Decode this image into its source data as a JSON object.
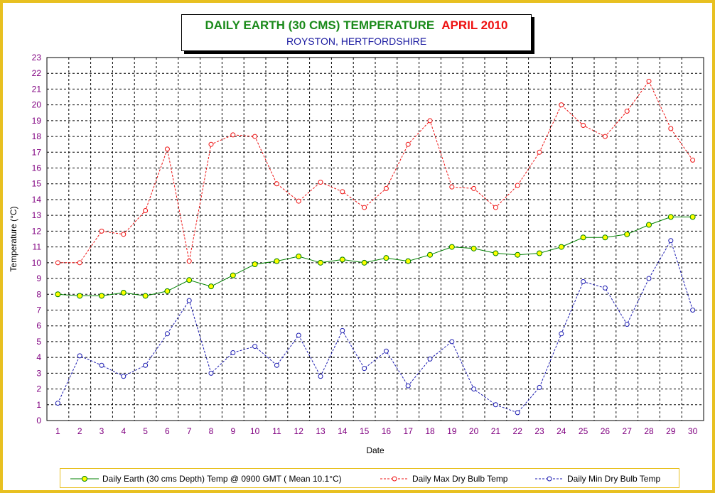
{
  "title": {
    "main": "DAILY EARTH (30 CMS) TEMPERATURE",
    "date": "APRIL 2010",
    "subtitle": "ROYSTON, HERTFORDSHIRE"
  },
  "colors": {
    "frame": "#e8c020",
    "earth": "#008000",
    "earth_marker": "#ffff00",
    "max": "#ee1111",
    "min": "#1a1ab0",
    "tick_label": "#800080"
  },
  "chart_data": {
    "type": "line",
    "title": "DAILY EARTH (30 CMS) TEMPERATURE APRIL 2010",
    "subtitle": "ROYSTON, HERTFORDSHIRE",
    "xlabel": "Date",
    "ylabel": "Temperature (°C)",
    "ylim": [
      0,
      23
    ],
    "grid": true,
    "legend_position": "bottom",
    "x": [
      1,
      2,
      3,
      4,
      5,
      6,
      7,
      8,
      9,
      10,
      11,
      12,
      13,
      14,
      15,
      16,
      17,
      18,
      19,
      20,
      21,
      22,
      23,
      24,
      25,
      26,
      27,
      28,
      29,
      30
    ],
    "y_ticks": [
      0,
      1,
      2,
      3,
      4,
      5,
      6,
      7,
      8,
      9,
      10,
      11,
      12,
      13,
      14,
      15,
      16,
      17,
      18,
      19,
      20,
      21,
      22,
      23
    ],
    "series": [
      {
        "name": "Daily Earth (30 cms Depth) Temp @ 0900 GMT ( Mean 10.1°C)",
        "key": "earth",
        "values": [
          8.0,
          7.9,
          7.9,
          8.1,
          7.9,
          8.2,
          8.9,
          8.5,
          9.2,
          9.9,
          10.1,
          10.4,
          10.0,
          10.2,
          10.0,
          10.3,
          10.1,
          10.5,
          11.0,
          10.9,
          10.6,
          10.5,
          10.6,
          11.0,
          11.6,
          11.6,
          11.8,
          12.4,
          12.9,
          12.9
        ]
      },
      {
        "name": "Daily Max Dry Bulb Temp",
        "key": "max",
        "values": [
          10.0,
          10.0,
          12.0,
          11.8,
          13.3,
          17.2,
          10.1,
          17.5,
          18.1,
          18.0,
          15.0,
          13.9,
          15.1,
          14.5,
          13.5,
          14.7,
          17.5,
          19.0,
          14.8,
          14.7,
          13.5,
          14.9,
          17.0,
          20.0,
          18.7,
          18.0,
          19.6,
          21.5,
          18.5,
          16.5
        ]
      },
      {
        "name": "Daily Min Dry Bulb Temp",
        "key": "min",
        "values": [
          1.1,
          4.1,
          3.5,
          2.8,
          3.5,
          5.5,
          7.6,
          3.0,
          4.3,
          4.7,
          3.5,
          5.4,
          2.8,
          5.7,
          3.3,
          4.4,
          2.2,
          3.9,
          5.0,
          2.0,
          1.0,
          0.5,
          2.1,
          5.5,
          8.8,
          8.4,
          6.1,
          9.0,
          11.4,
          7.0
        ]
      }
    ]
  }
}
